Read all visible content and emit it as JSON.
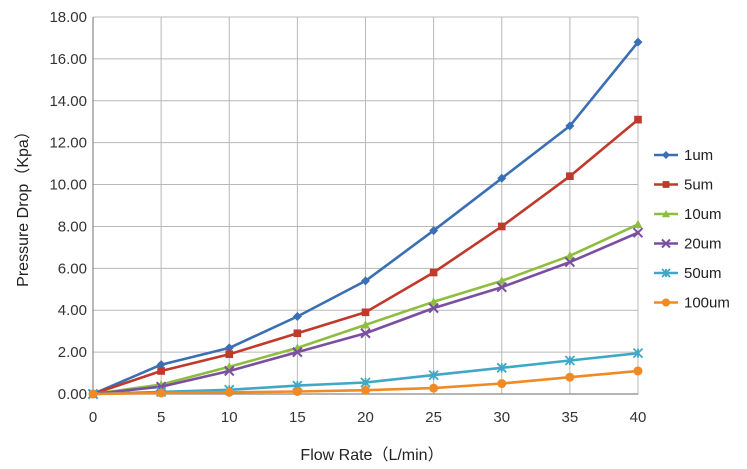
{
  "chart_data": {
    "type": "line",
    "title": "",
    "xlabel": "Flow Rate（L/min）",
    "ylabel": "Pressure Drop（Kpa）",
    "x": [
      0,
      5,
      10,
      15,
      20,
      25,
      30,
      35,
      40
    ],
    "xlim": [
      0,
      40
    ],
    "ylim": [
      0,
      18
    ],
    "x_ticks": [
      "0",
      "5",
      "10",
      "15",
      "20",
      "25",
      "30",
      "35",
      "40"
    ],
    "y_ticks": [
      "0.00",
      "2.00",
      "4.00",
      "6.00",
      "8.00",
      "10.00",
      "12.00",
      "14.00",
      "16.00",
      "18.00"
    ],
    "grid": true,
    "legend_position": "right",
    "series": [
      {
        "name": "1um",
        "color": "#3a6fb3",
        "marker": "diamond",
        "values": [
          0.0,
          1.4,
          2.2,
          3.7,
          5.4,
          7.8,
          10.3,
          12.8,
          16.8
        ]
      },
      {
        "name": "5um",
        "color": "#c0392b",
        "marker": "square",
        "values": [
          0.0,
          1.1,
          1.9,
          2.9,
          3.9,
          5.8,
          8.0,
          10.4,
          13.1
        ]
      },
      {
        "name": "10um",
        "color": "#8ebd3f",
        "marker": "triangle",
        "values": [
          0.0,
          0.45,
          1.3,
          2.2,
          3.3,
          4.4,
          5.4,
          6.6,
          8.1
        ]
      },
      {
        "name": "20um",
        "color": "#7b4fa0",
        "marker": "x",
        "values": [
          0.0,
          0.35,
          1.1,
          2.0,
          2.9,
          4.1,
          5.1,
          6.3,
          7.7
        ]
      },
      {
        "name": "50um",
        "color": "#3fa9c5",
        "marker": "star",
        "values": [
          0.0,
          0.1,
          0.2,
          0.4,
          0.55,
          0.9,
          1.25,
          1.6,
          1.95
        ]
      },
      {
        "name": "100um",
        "color": "#f08a24",
        "marker": "circle",
        "values": [
          0.0,
          0.05,
          0.08,
          0.12,
          0.18,
          0.28,
          0.5,
          0.8,
          1.1
        ]
      }
    ]
  }
}
